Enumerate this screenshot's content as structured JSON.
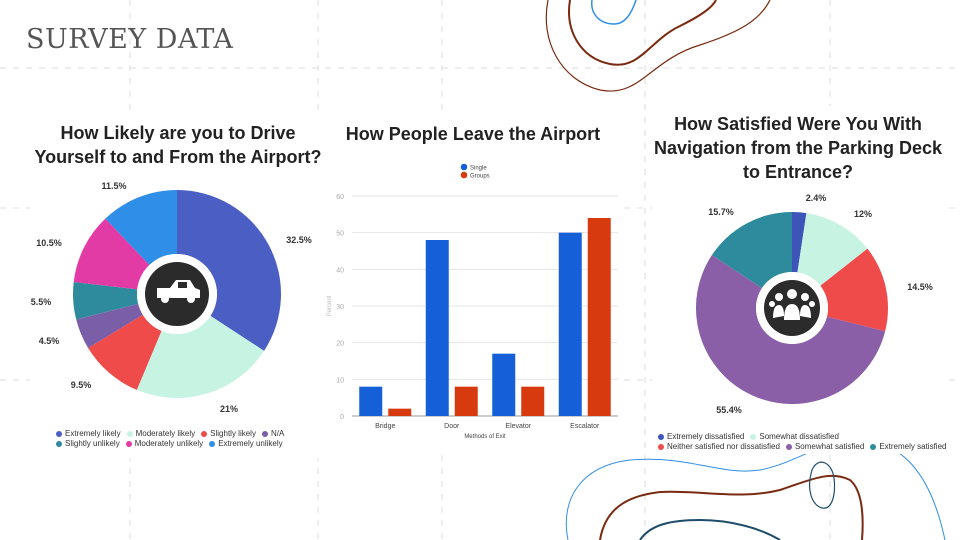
{
  "slide": {
    "title": "SURVEY DATA"
  },
  "chart_data": [
    {
      "type": "pie",
      "title": "How Likely are you to Drive Yourself to and From the Airport?",
      "title_lines": [
        "How Likely are you to Drive",
        "Yourself to and From the Airport?"
      ],
      "center_icon": "car-icon",
      "slices": [
        {
          "label": "Extremely likely",
          "value": 32.5,
          "display": "32.5%",
          "color": "#4a5ec4"
        },
        {
          "label": "Moderately likely",
          "value": 21,
          "display": "21%",
          "color": "#c7f3e3"
        },
        {
          "label": "Slightly likely",
          "value": 9.5,
          "display": "9.5%",
          "color": "#ef4b4b"
        },
        {
          "label": "N/A",
          "value": 4.5,
          "display": "4.5%",
          "color": "#7b5ea8"
        },
        {
          "label": "Slightly unlikely",
          "value": 5.5,
          "display": "5.5%",
          "color": "#2e8b9e"
        },
        {
          "label": "Moderately unlikely",
          "value": 10.5,
          "display": "10.5%",
          "color": "#e33ba6"
        },
        {
          "label": "Extremely unlikely",
          "value": 11.5,
          "display": "11.5%",
          "color": "#2f8fe8"
        }
      ],
      "legend": [
        "Extremely likely",
        "Moderately likely",
        "Slightly likely",
        "N/A",
        "Slightly unlikely",
        "Moderately unlikely",
        "Extremely unlikely"
      ]
    },
    {
      "type": "bar",
      "title": "How People Leave the Airport",
      "categories": [
        "Bridge",
        "Door",
        "Elevator",
        "Escalator"
      ],
      "series": [
        {
          "name": "Single",
          "values": [
            8,
            48,
            17,
            50
          ],
          "color": "#1560d8"
        },
        {
          "name": "Groups",
          "values": [
            2,
            8,
            8,
            54
          ],
          "color": "#d83a10"
        }
      ],
      "xlabel": "Methods of Exit",
      "ylabel": "Percent",
      "ylim": [
        0,
        60
      ],
      "yticks": [
        0,
        10,
        20,
        30,
        40,
        50,
        60
      ],
      "grid": true,
      "legend_position": "top"
    },
    {
      "type": "pie",
      "title": "How Satisfied Were You With Navigation from the Parking Deck to Entrance?",
      "title_lines": [
        "How Satisfied Were You With",
        "Navigation from the Parking Deck",
        "to Entrance?"
      ],
      "center_icon": "people-group-icon",
      "slices": [
        {
          "label": "Extremely dissatisfied",
          "value": 2.4,
          "display": "2.4%",
          "color": "#3d54b8"
        },
        {
          "label": "Somewhat dissatisfied",
          "value": 12,
          "display": "12%",
          "color": "#c7f3e3"
        },
        {
          "label": "Neither satisfied nor dissatisfied",
          "value": 14.5,
          "display": "14.5%",
          "color": "#ef4b4b"
        },
        {
          "label": "Somewhat satisfied",
          "value": 55.4,
          "display": "55.4%",
          "color": "#8a5fa8"
        },
        {
          "label": "Extremely satisfied",
          "value": 15.7,
          "display": "15.7%",
          "color": "#2e8b9e"
        }
      ],
      "legend": [
        "Extremely dissatisfied",
        "Somewhat dissatisfied",
        "Neither satisfied nor dissatisfied",
        "Somewhat satisfied",
        "Extremely satisfied"
      ]
    }
  ]
}
